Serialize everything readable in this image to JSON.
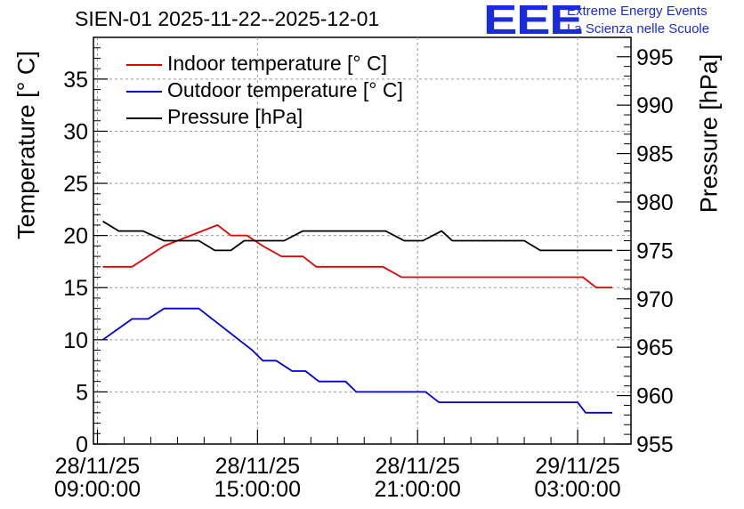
{
  "header": {
    "title": "SIEN-01 2025-11-22--2025-12-01"
  },
  "logo": {
    "mark": "EEE",
    "line1": "Extreme Energy Events",
    "line2": "La Scienza nelle Scuole",
    "color": "#1a2bdc"
  },
  "chart_data": {
    "type": "line",
    "title": "SIEN-01 2025-11-22--2025-12-01",
    "ylabel": "Temperature [° C]",
    "y2label": "Pressure [hPa]",
    "ylim": [
      0,
      39
    ],
    "y2lim": [
      955,
      997
    ],
    "yticks": [
      0,
      5,
      10,
      15,
      20,
      25,
      30,
      35
    ],
    "y2ticks": [
      955,
      960,
      965,
      970,
      975,
      980,
      985,
      990,
      995
    ],
    "xlim": [
      -0.15,
      20
    ],
    "xunit": "hours since 28/11/25 09:00:00",
    "xticks": [
      {
        "x": 0,
        "line1": "28/11/25",
        "line2": "09:00:00"
      },
      {
        "x": 6,
        "line1": "28/11/25",
        "line2": "15:00:00"
      },
      {
        "x": 12,
        "line1": "28/11/25",
        "line2": "21:00:00"
      },
      {
        "x": 18,
        "line1": "29/11/25",
        "line2": "03:00:00"
      }
    ],
    "grid": true,
    "legend_position": "top-left",
    "series": [
      {
        "name": "Indoor temperature [° C]",
        "color": "#e00000",
        "axis": "left",
        "x": [
          0.2,
          1.3,
          2.5,
          3.5,
          4.5,
          5.0,
          5.6,
          6.2,
          6.9,
          7.7,
          8.2,
          8.8,
          9.7,
          10.7,
          11.4,
          12.3,
          13.3,
          14.3,
          15.2,
          16.2,
          16.7,
          17.3,
          17.7,
          18.2,
          18.7,
          19.0,
          19.3
        ],
        "values": [
          17,
          17,
          19,
          20,
          21,
          20,
          20,
          19,
          18,
          18,
          17,
          17,
          17,
          17,
          16,
          16,
          16,
          16,
          16,
          16,
          16,
          16,
          16,
          16,
          15,
          15,
          15
        ]
      },
      {
        "name": "Outdoor temperature [° C]",
        "color": "#0000d0",
        "axis": "left",
        "x": [
          0.2,
          1.3,
          1.9,
          2.5,
          3.2,
          3.8,
          4.3,
          4.8,
          5.3,
          5.8,
          6.2,
          6.7,
          7.3,
          7.8,
          8.3,
          8.8,
          9.3,
          9.7,
          10.3,
          10.8,
          11.3,
          11.7,
          12.3,
          12.8,
          13.1,
          13.6,
          14.5,
          15.5,
          16.5,
          17.1,
          17.5,
          18.0,
          18.3,
          18.8,
          19.3
        ],
        "values": [
          10,
          12,
          12,
          13,
          13,
          13,
          12,
          11,
          10,
          9,
          8,
          8,
          7,
          7,
          6,
          6,
          6,
          5,
          5,
          5,
          5,
          5,
          5,
          4,
          4,
          4,
          4,
          4,
          4,
          4,
          4,
          4,
          3,
          3,
          3
        ]
      },
      {
        "name": "Pressure [hPa]",
        "color": "#000000",
        "axis": "right",
        "x": [
          0.2,
          0.8,
          1.7,
          2.5,
          3.3,
          3.8,
          4.4,
          5.0,
          5.5,
          6.0,
          6.5,
          7.0,
          7.7,
          8.5,
          9.3,
          10.1,
          10.8,
          11.5,
          12.2,
          12.9,
          13.3,
          13.8,
          14.4,
          15.0,
          15.6,
          16.0,
          16.6,
          17.2,
          18.0,
          18.6,
          19.3
        ],
        "values": [
          978,
          977,
          977,
          976,
          976,
          976,
          975,
          975,
          976,
          976,
          976,
          976,
          977,
          977,
          977,
          977,
          977,
          976,
          976,
          977,
          976,
          976,
          976,
          976,
          976,
          976,
          975,
          975,
          975,
          975,
          975
        ]
      }
    ]
  }
}
